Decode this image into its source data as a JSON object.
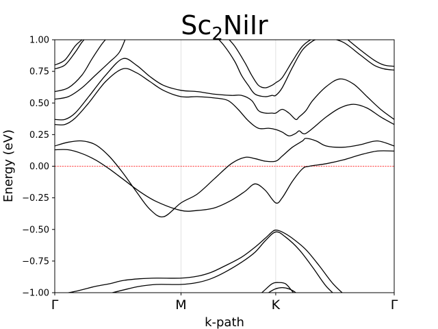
{
  "chart_data": {
    "type": "line",
    "title": {
      "base": "Sc",
      "sub": "2",
      "rest": "NiIr"
    },
    "xlabel": "k-path",
    "ylabel": "Energy (eV)",
    "ylim": [
      -1.0,
      1.0
    ],
    "yticks": [
      -1.0,
      -0.75,
      -0.5,
      -0.25,
      0.0,
      0.25,
      0.5,
      0.75,
      1.0
    ],
    "ytick_labels": [
      "−1.00",
      "−0.75",
      "−0.50",
      "−0.25",
      "0.00",
      "0.25",
      "0.50",
      "0.75",
      "1.00"
    ],
    "xlim": [
      0,
      1
    ],
    "kpoints": [
      {
        "label": "Γ",
        "x": 0.0
      },
      {
        "label": "M",
        "x": 0.372
      },
      {
        "label": "K",
        "x": 0.651
      },
      {
        "label": "Γ",
        "x": 1.0
      }
    ],
    "fermi_level": 0.0,
    "fermi_color": "#ff0000",
    "band_color": "#000000",
    "grid_color": "#d9d9d9",
    "series": [
      {
        "x": [
          0,
          0.06,
          0.12,
          0.16,
          0.19,
          0.21
        ],
        "y": [
          -1.02,
          -0.99,
          -0.95,
          -0.93,
          -0.91,
          -0.9
        ]
      },
      {
        "x": [
          0.09,
          0.14,
          0.2,
          0.25,
          0.3,
          0.372,
          0.42,
          0.46,
          0.5,
          0.55,
          0.59,
          0.62,
          0.651,
          0.68,
          0.72,
          0.76,
          0.8,
          0.84
        ],
        "y": [
          -1.05,
          -1.02,
          -0.98,
          -0.95,
          -0.935,
          -0.935,
          -0.92,
          -0.89,
          -0.84,
          -0.76,
          -0.68,
          -0.59,
          -0.52,
          -0.56,
          -0.66,
          -0.8,
          -0.95,
          -1.05
        ]
      },
      {
        "x": [
          0.21,
          0.25,
          0.3,
          0.372,
          0.42,
          0.46,
          0.5,
          0.55,
          0.59,
          0.62,
          0.64,
          0.651,
          0.67,
          0.7,
          0.74,
          0.78,
          0.82,
          0.86,
          0.88
        ],
        "y": [
          -0.9,
          -0.89,
          -0.885,
          -0.885,
          -0.87,
          -0.84,
          -0.79,
          -0.72,
          -0.64,
          -0.57,
          -0.52,
          -0.505,
          -0.52,
          -0.57,
          -0.66,
          -0.79,
          -0.93,
          -1.03,
          -1.06
        ]
      },
      {
        "x": [
          0.58,
          0.61,
          0.64,
          0.66,
          0.68,
          0.7,
          0.72
        ],
        "y": [
          -1.06,
          -1.0,
          -0.93,
          -0.92,
          -0.93,
          -0.99,
          -1.06
        ]
      },
      {
        "x": [
          0.6,
          0.63,
          0.65,
          0.67,
          0.69,
          0.71,
          0.73
        ],
        "y": [
          -1.06,
          -1.0,
          -0.97,
          -0.96,
          -0.97,
          -1.0,
          -1.06
        ]
      },
      {
        "x": [
          0,
          0.04,
          0.08,
          0.12,
          0.16,
          0.2,
          0.25,
          0.3,
          0.372,
          0.42,
          0.47,
          0.52,
          0.56,
          0.59,
          0.62,
          0.651,
          0.67,
          0.7,
          0.73,
          0.75,
          0.8,
          0.85,
          0.9,
          0.95,
          1.0
        ],
        "y": [
          0.13,
          0.13,
          0.1,
          0.05,
          -0.02,
          -0.1,
          -0.2,
          -0.28,
          -0.35,
          -0.35,
          -0.33,
          -0.27,
          -0.2,
          -0.14,
          -0.19,
          -0.29,
          -0.25,
          -0.12,
          -0.02,
          0.0,
          0.02,
          0.05,
          0.09,
          0.12,
          0.12
        ]
      },
      {
        "x": [
          0,
          0.04,
          0.08,
          0.12,
          0.16,
          0.2,
          0.24,
          0.28,
          0.32,
          0.372,
          0.42,
          0.47,
          0.52,
          0.56,
          0.59,
          0.62,
          0.651,
          0.67,
          0.7,
          0.73,
          0.74,
          0.77,
          0.8,
          0.85,
          0.9,
          0.95,
          1.0
        ],
        "y": [
          0.16,
          0.19,
          0.2,
          0.17,
          0.08,
          -0.05,
          -0.2,
          -0.34,
          -0.4,
          -0.29,
          -0.22,
          -0.1,
          0.02,
          0.07,
          0.06,
          0.04,
          0.04,
          0.08,
          0.15,
          0.2,
          0.22,
          0.2,
          0.16,
          0.15,
          0.17,
          0.2,
          0.16
        ]
      },
      {
        "x": [
          0,
          0.03,
          0.06,
          0.1,
          0.15,
          0.2,
          0.24,
          0.28,
          0.32,
          0.372,
          0.42,
          0.47,
          0.51,
          0.54,
          0.57,
          0.6,
          0.63,
          0.651,
          0.67,
          0.69,
          0.71,
          0.72,
          0.73,
          0.74,
          0.76,
          0.8,
          0.84,
          0.88,
          0.92,
          0.96,
          1.0
        ],
        "y": [
          0.33,
          0.33,
          0.38,
          0.5,
          0.67,
          0.77,
          0.74,
          0.67,
          0.6,
          0.55,
          0.55,
          0.54,
          0.52,
          0.45,
          0.36,
          0.3,
          0.3,
          0.29,
          0.27,
          0.24,
          0.26,
          0.28,
          0.26,
          0.26,
          0.3,
          0.39,
          0.46,
          0.49,
          0.46,
          0.39,
          0.33
        ]
      },
      {
        "x": [
          0,
          0.03,
          0.06,
          0.1,
          0.15,
          0.2,
          0.24,
          0.28,
          0.32,
          0.372,
          0.42,
          0.47,
          0.52,
          0.55,
          0.58,
          0.6,
          0.62,
          0.64,
          0.651,
          0.67,
          0.69,
          0.71,
          0.72,
          0.74,
          0.76,
          0.8,
          0.84,
          0.88,
          0.92,
          0.96,
          1.0
        ],
        "y": [
          0.37,
          0.37,
          0.42,
          0.55,
          0.72,
          0.85,
          0.8,
          0.71,
          0.64,
          0.6,
          0.59,
          0.57,
          0.56,
          0.56,
          0.52,
          0.44,
          0.42,
          0.42,
          0.42,
          0.45,
          0.42,
          0.37,
          0.39,
          0.44,
          0.52,
          0.63,
          0.69,
          0.65,
          0.55,
          0.45,
          0.37
        ]
      },
      {
        "x": [
          0,
          0.04,
          0.08,
          0.12,
          0.16,
          0.19,
          0.21
        ],
        "y": [
          0.53,
          0.55,
          0.62,
          0.72,
          0.82,
          0.9,
          1.02
        ]
      },
      {
        "x": [
          0,
          0.04,
          0.08,
          0.11,
          0.14,
          0.16,
          0.17
        ],
        "y": [
          0.59,
          0.62,
          0.72,
          0.85,
          0.97,
          1.03,
          1.05
        ]
      },
      {
        "x": [
          0,
          0.03,
          0.06,
          0.08,
          0.1
        ],
        "y": [
          0.77,
          0.8,
          0.9,
          0.98,
          1.04
        ]
      },
      {
        "x": [
          0,
          0.03,
          0.06,
          0.08,
          0.1
        ],
        "y": [
          0.8,
          0.84,
          0.95,
          1.0,
          1.05
        ]
      },
      {
        "x": [
          0.47,
          0.5,
          0.53,
          0.55,
          0.57,
          0.59,
          0.62,
          0.64,
          0.651,
          0.67,
          0.7,
          0.73,
          0.76,
          0.78,
          0.8
        ],
        "y": [
          1.04,
          0.95,
          0.83,
          0.72,
          0.64,
          0.57,
          0.55,
          0.56,
          0.56,
          0.62,
          0.78,
          0.92,
          0.99,
          1.01,
          1.03
        ]
      },
      {
        "x": [
          0.5,
          0.53,
          0.56,
          0.58,
          0.6,
          0.62,
          0.64,
          0.651,
          0.67,
          0.7,
          0.73,
          0.76,
          0.78,
          0.8
        ],
        "y": [
          1.04,
          0.95,
          0.82,
          0.72,
          0.64,
          0.62,
          0.64,
          0.66,
          0.7,
          0.83,
          0.95,
          1.01,
          1.03,
          1.04
        ]
      },
      {
        "x": [
          0.8,
          0.85,
          0.9,
          0.94,
          0.97,
          1.0
        ],
        "y": [
          1.02,
          0.98,
          0.88,
          0.8,
          0.77,
          0.76
        ]
      },
      {
        "x": [
          0.85,
          0.9,
          0.94,
          0.97,
          1.0
        ],
        "y": [
          1.03,
          0.92,
          0.84,
          0.8,
          0.79
        ]
      }
    ]
  }
}
